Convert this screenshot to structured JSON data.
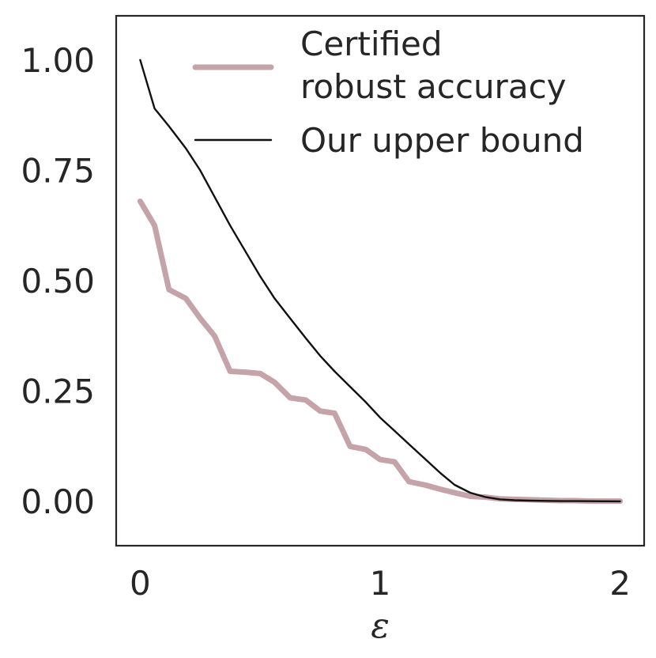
{
  "chart_data": {
    "type": "line",
    "title": "",
    "xlabel": "ε",
    "ylabel": "",
    "xlim": [
      -0.1,
      2.1
    ],
    "ylim": [
      -0.1,
      1.1
    ],
    "x_ticks": [
      0,
      1,
      2
    ],
    "x_tick_labels": [
      "0",
      "1",
      "2"
    ],
    "y_ticks": [
      0.0,
      0.25,
      0.5,
      0.75,
      1.0
    ],
    "y_tick_labels": [
      "0.00",
      "0.25",
      "0.50",
      "0.75",
      "1.00"
    ],
    "grid": false,
    "legend_position": "top-right",
    "series": [
      {
        "name": "Certified\n robust accuracy",
        "legend_lines": [
          "Certified",
          " robust accuracy"
        ],
        "color": "#c4a4a8",
        "style": "thick",
        "x": [
          0.0,
          0.06,
          0.12,
          0.19,
          0.25,
          0.31,
          0.375,
          0.44,
          0.5,
          0.56,
          0.625,
          0.69,
          0.75,
          0.81,
          0.875,
          0.94,
          1.0,
          1.06,
          1.12,
          1.19,
          1.25,
          1.31,
          1.375,
          1.44,
          1.5,
          1.56,
          1.625,
          1.69,
          1.75,
          1.81,
          1.875,
          1.94,
          2.0
        ],
        "y": [
          0.68,
          0.625,
          0.48,
          0.46,
          0.415,
          0.375,
          0.295,
          0.293,
          0.29,
          0.27,
          0.235,
          0.23,
          0.205,
          0.2,
          0.125,
          0.118,
          0.095,
          0.09,
          0.045,
          0.037,
          0.028,
          0.02,
          0.012,
          0.01,
          0.006,
          0.005,
          0.004,
          0.003,
          0.002,
          0.002,
          0.001,
          0.001,
          0.001
        ]
      },
      {
        "name": "Our upper bound",
        "legend_lines": [
          "Our upper bound"
        ],
        "color": "#111111",
        "style": "thin",
        "x": [
          0.0,
          0.06,
          0.12,
          0.19,
          0.25,
          0.31,
          0.375,
          0.44,
          0.5,
          0.56,
          0.625,
          0.69,
          0.75,
          0.81,
          0.875,
          0.94,
          1.0,
          1.06,
          1.12,
          1.19,
          1.25,
          1.31,
          1.375,
          1.44,
          1.5,
          1.56,
          1.625,
          1.69,
          1.75,
          1.81,
          1.875,
          1.94,
          2.0
        ],
        "y": [
          1.0,
          0.89,
          0.85,
          0.8,
          0.75,
          0.69,
          0.625,
          0.565,
          0.51,
          0.46,
          0.415,
          0.37,
          0.33,
          0.295,
          0.26,
          0.225,
          0.19,
          0.16,
          0.13,
          0.095,
          0.065,
          0.038,
          0.02,
          0.01,
          0.005,
          0.003,
          0.002,
          0.0015,
          0.001,
          0.001,
          0.0008,
          0.0006,
          0.0005
        ]
      }
    ]
  }
}
